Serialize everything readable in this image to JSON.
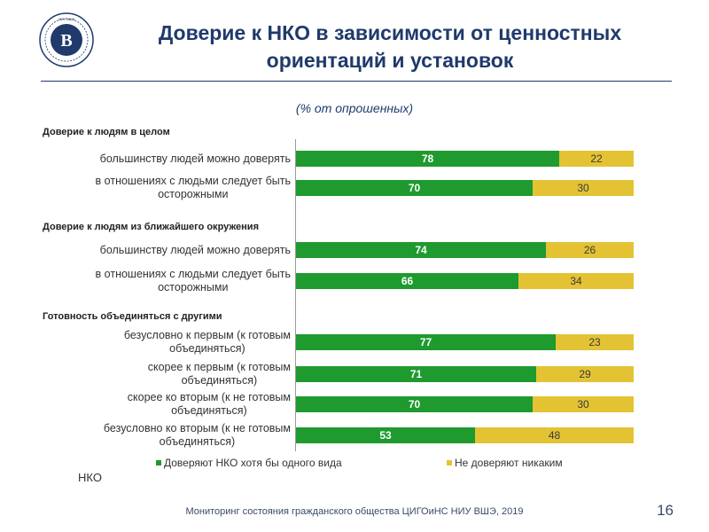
{
  "header": {
    "logo_text": "НИУ ВШЭ",
    "title_line1": "Доверие к НКО в зависимости от ценностных",
    "title_line2": "ориентаций и установок"
  },
  "chart_data": {
    "type": "bar",
    "stacked": true,
    "orientation": "horizontal",
    "title": "Доверие к НКО в зависимости от ценностных ориентаций и установок",
    "subtitle": "(% от опрошенных)",
    "xlim": [
      0,
      100
    ],
    "groups": [
      {
        "title": "Доверие к людям в целом",
        "rows": [
          {
            "label": [
              "большинству людей можно доверять"
            ],
            "values": [
              78,
              22
            ]
          },
          {
            "label": [
              "в отношениях с людьми следует быть",
              "осторожными"
            ],
            "values": [
              70,
              30
            ]
          }
        ]
      },
      {
        "title": "Доверие к людям из ближайшего окружения",
        "rows": [
          {
            "label": [
              "большинству людей можно доверять"
            ],
            "values": [
              74,
              26
            ]
          },
          {
            "label": [
              "в отношениях с людьми следует быть",
              "осторожными"
            ],
            "values": [
              66,
              34
            ]
          }
        ]
      },
      {
        "title": "Готовность объединяться с другими",
        "rows": [
          {
            "label": [
              "безусловно к первым (к готовым",
              "объединяться)"
            ],
            "values": [
              77,
              23
            ]
          },
          {
            "label": [
              "скорее к первым (к готовым",
              "объединяться)"
            ],
            "values": [
              71,
              29
            ]
          },
          {
            "label": [
              "скорее ко вторым (к не готовым",
              "объединяться)"
            ],
            "values": [
              70,
              30
            ]
          },
          {
            "label": [
              "безусловно ко вторым (к не готовым",
              "объединяться)"
            ],
            "values": [
              53,
              48
            ]
          }
        ]
      }
    ],
    "series": [
      {
        "name": "Доверяют НКО хотя бы одного вида",
        "color": "#1e9a2f"
      },
      {
        "name": "Не доверяют никаким",
        "color": "#e3c334"
      }
    ],
    "legend_continuation": "НКО"
  },
  "footer": {
    "source": "Мониторинг состояния гражданского общества ЦИГОиНС НИУ ВШЭ, 2019",
    "page_number": "16"
  }
}
